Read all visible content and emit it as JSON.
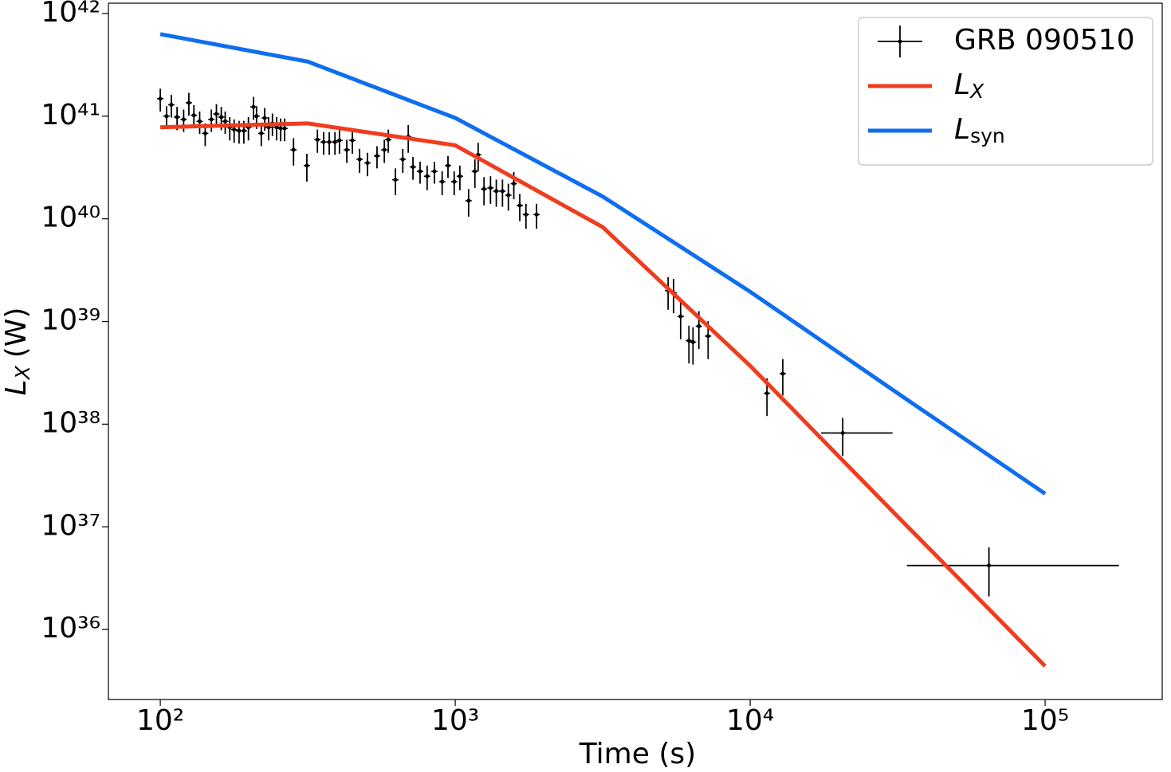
{
  "chart_data": {
    "type": "loglog",
    "xlabel": "Time (s)",
    "ylabel": {
      "main": "L",
      "sub": "X",
      "unit": "(W)"
    },
    "xscale": "log",
    "yscale": "log",
    "xlim": [
      66.7,
      249500
    ],
    "ylim": [
      2.08e+35,
      1.26e+42
    ],
    "xticks": [
      {
        "value": 100,
        "label": "10²"
      },
      {
        "value": 1000,
        "label": "10³"
      },
      {
        "value": 10000,
        "label": "10⁴"
      },
      {
        "value": 100000,
        "label": "10⁵"
      }
    ],
    "yticks": [
      {
        "value": 1e+36,
        "label": "10³⁶"
      },
      {
        "value": 1e+37,
        "label": "10³⁷"
      },
      {
        "value": 1e+38,
        "label": "10³⁸"
      },
      {
        "value": 1e+39,
        "label": "10³⁹"
      },
      {
        "value": 1e+40,
        "label": "10⁴⁰"
      },
      {
        "value": 1e+41,
        "label": "10⁴¹"
      },
      {
        "value": 1e+42,
        "label": "10⁴²"
      }
    ],
    "legend": "upper right",
    "series": [
      {
        "name": "GRB 090510",
        "kind": "errorbar",
        "color": "#000000",
        "x": [
          100,
          105,
          109,
          114,
          120,
          125,
          130,
          136,
          142,
          149,
          155,
          161,
          166,
          172,
          178,
          185,
          192,
          199,
          207,
          212,
          220,
          226,
          233,
          240,
          248,
          256,
          264,
          283,
          314,
          341,
          358,
          374,
          391,
          405,
          429,
          448,
          474,
          504,
          543,
          575,
          593,
          627,
          664,
          693,
          719,
          760,
          803,
          850,
          903,
          945,
          992,
          1037,
          1110,
          1166,
          1196,
          1252,
          1317,
          1378,
          1446,
          1514,
          1580,
          1655,
          1737,
          1887,
          5270,
          5500,
          5810,
          6200,
          6400,
          6700,
          7200,
          11400,
          12900,
          20600,
          64500
        ],
        "values": [
          1.48e+41,
          1e+41,
          1.29e+41,
          9.8e+40,
          9.3e+40,
          1.35e+41,
          1.02e+41,
          8.9e+40,
          6.8e+40,
          9.3e+40,
          1.05e+41,
          9.8e+40,
          8.9e+40,
          7.8e+40,
          7.4e+40,
          7.2e+40,
          7.2e+40,
          7.8e+40,
          1.23e+41,
          1e+41,
          6.8e+40,
          9.6e+40,
          7.8e+40,
          8.5e+40,
          7.8e+40,
          7.6e+40,
          7.6e+40,
          4.7e+40,
          3.3e+40,
          5.9e+40,
          5.6e+40,
          5.6e+40,
          5.6e+40,
          5.8e+40,
          4.7e+40,
          5.8e+40,
          3.8e+40,
          3.5e+40,
          4.1e+40,
          4.7e+40,
          5.9e+40,
          2.4e+40,
          3.8e+40,
          6.3e+40,
          3.2e+40,
          2.9e+40,
          2.6e+40,
          2.9e+40,
          2.3e+40,
          3.3e+40,
          2.3e+40,
          2.6e+40,
          1.5e+40,
          2.9e+40,
          4.2e+40,
          1.95e+40,
          2e+40,
          1.86e+40,
          1.86e+40,
          1.7e+40,
          2.2e+40,
          1.35e+40,
          1.1e+40,
          1.1e+40,
          2e+39,
          1.9e+39,
          1.12e+39,
          6.5e+38,
          6.3e+38,
          9e+38,
          7.2e+38,
          2e+38,
          3.1e+38,
          8.2e+37,
          4.2e+36
        ],
        "yerr": [
          3.7e+40,
          2.5e+40,
          3.2e+40,
          2.5e+40,
          2.3e+40,
          3.4e+40,
          2.6e+40,
          2.2e+40,
          1.7e+40,
          2.3e+40,
          2.6e+40,
          2.5e+40,
          2.2e+40,
          2e+40,
          1.9e+40,
          1.8e+40,
          1.8e+40,
          2e+40,
          3.1e+40,
          2.5e+40,
          1.7e+40,
          2.4e+40,
          2e+40,
          2.1e+40,
          2e+40,
          1.9e+40,
          1.9e+40,
          1.4e+40,
          1e+40,
          1.5e+40,
          1.4e+40,
          1.4e+40,
          1.4e+40,
          1.5e+40,
          1.2e+40,
          1.5e+40,
          1e+40,
          9e+39,
          1e+40,
          1.2e+40,
          1.5e+40,
          7e+39,
          1e+40,
          1.9e+40,
          8e+39,
          7e+39,
          7e+39,
          7e+39,
          6e+39,
          8e+39,
          6e+39,
          7e+39,
          4.5e+39,
          9e+39,
          1.3e+40,
          6e+39,
          6e+39,
          5.5e+39,
          5.5e+39,
          5e+39,
          6.5e+39,
          4e+39,
          3e+39,
          3e+39,
          7e+38,
          7e+38,
          4.5e+38,
          2.6e+38,
          2.5e+38,
          3.6e+38,
          2.9e+38,
          8e+37,
          1.2e+38,
          3.3e+37,
          2.1e+36
        ],
        "xerr": [
          null,
          null,
          null,
          null,
          null,
          null,
          null,
          null,
          null,
          null,
          null,
          null,
          null,
          null,
          null,
          null,
          null,
          null,
          null,
          null,
          null,
          null,
          null,
          null,
          null,
          null,
          null,
          null,
          null,
          null,
          null,
          null,
          null,
          null,
          null,
          null,
          null,
          null,
          null,
          null,
          null,
          null,
          null,
          null,
          null,
          null,
          null,
          null,
          null,
          null,
          null,
          null,
          null,
          null,
          null,
          null,
          null,
          null,
          null,
          null,
          null,
          null,
          null,
          null,
          null,
          null,
          null,
          null,
          null,
          null,
          null,
          null,
          null,
          [
            3200,
            9800
          ],
          [
            30500,
            113500
          ]
        ]
      },
      {
        "name": {
          "main": "L",
          "sub": "X"
        },
        "kind": "line",
        "color": "#f03c1e",
        "x": [
          100,
          316,
          1000,
          3162,
          10000,
          31623,
          100000
        ],
        "values": [
          7.8e+40,
          8.5e+40,
          5.2e+40,
          8.3e+39,
          3.7e+38,
          1.26e+37,
          4.4e+35
        ]
      },
      {
        "name": {
          "main": "L",
          "sub": "syn"
        },
        "kind": "line",
        "color": "#0f6ef0",
        "x": [
          100,
          316,
          1000,
          3162,
          10000,
          31623,
          100000
        ],
        "values": [
          6.3e+41,
          3.4e+41,
          9.6e+40,
          1.65e+40,
          1.95e+39,
          2e+38,
          2.1e+37
        ]
      }
    ]
  }
}
